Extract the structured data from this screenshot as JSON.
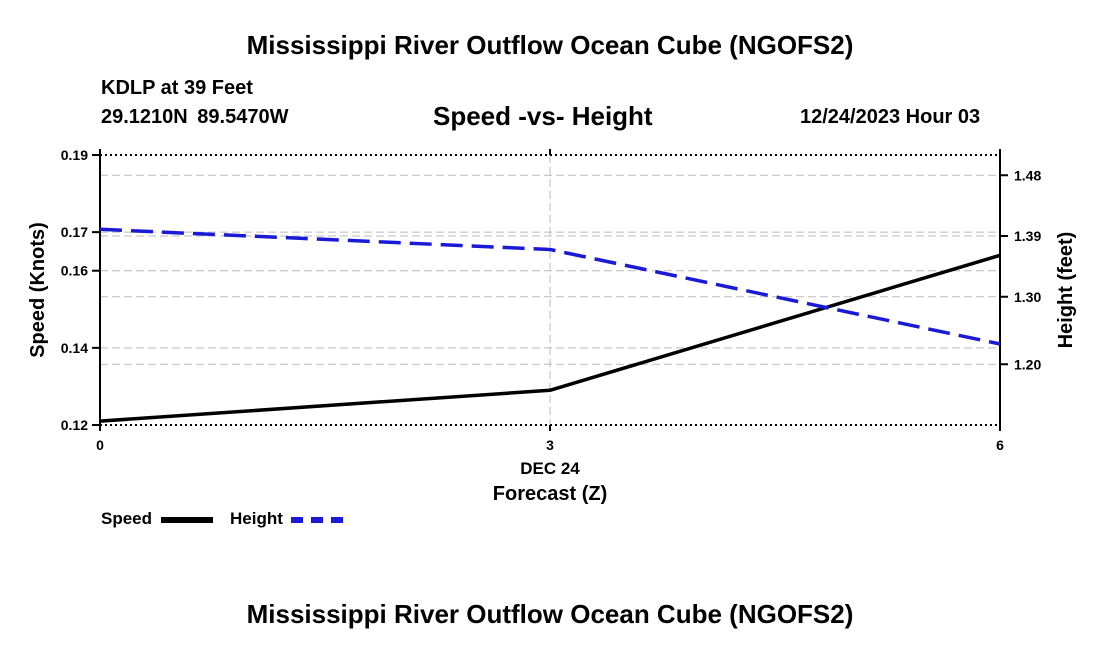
{
  "header": {
    "title": "Mississippi River Outflow Ocean Cube (NGOFS2)",
    "station": "KDLP at 39 Feet",
    "coords": "29.1210N 89.5470W",
    "subtitle": "Speed -vs- Height",
    "datetime": "12/24/2023 Hour 03"
  },
  "footer": {
    "title": "Mississippi River Outflow Ocean Cube (NGOFS2)"
  },
  "chart_data": {
    "type": "line",
    "title": "Speed -vs- Height",
    "xlabel": "Forecast (Z)",
    "x_date_label": "DEC 24",
    "x": [
      0,
      3,
      6
    ],
    "x_ticks": [
      "0",
      "3",
      "6"
    ],
    "xlim": [
      0,
      6
    ],
    "ylabel_left": "Speed (Knots)",
    "ylabel_right": "Height (feet)",
    "ylim_left": [
      0.12,
      0.19
    ],
    "ylim_right": [
      1.11,
      1.51
    ],
    "y_left_ticks": [
      "0.12",
      "0.14",
      "0.16",
      "0.17",
      "0.19"
    ],
    "y_right_ticks": [
      "1.20",
      "1.30",
      "1.39",
      "1.48"
    ],
    "series": [
      {
        "name": "Speed",
        "axis": "left",
        "color": "#000000",
        "dash": "solid",
        "values": [
          0.121,
          0.129,
          0.164
        ]
      },
      {
        "name": "Height",
        "axis": "right",
        "color": "#1a1ad6",
        "dash": "dashed",
        "values": [
          1.4,
          1.37,
          1.23
        ]
      }
    ],
    "legend_position": "bottom-left",
    "grid": true
  },
  "colors": {
    "speed": "#000000",
    "height": "#1a1ad6",
    "grid": "#bbbbbb"
  }
}
